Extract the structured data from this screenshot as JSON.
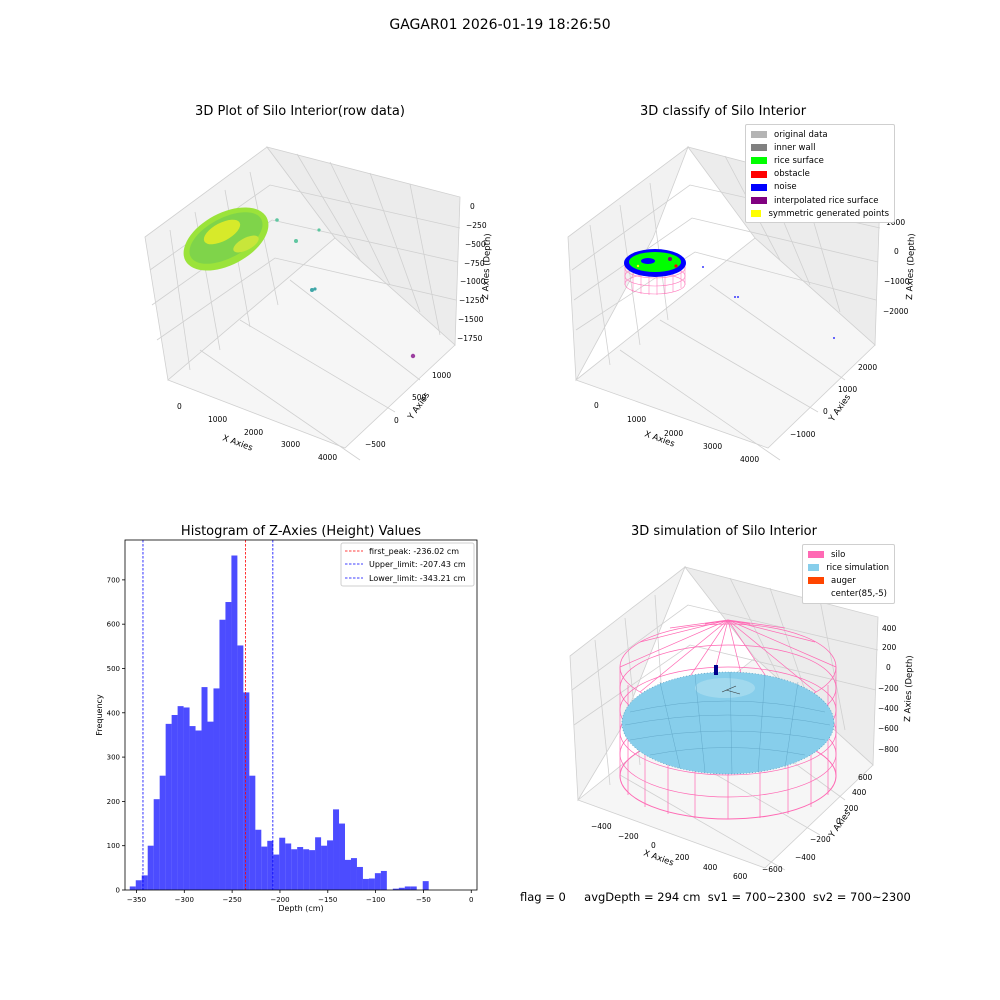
{
  "suptitle": "GAGAR01 2026-01-19 18:26:50",
  "panels": {
    "raw": {
      "title": "3D Plot of Silo Interior(row data)",
      "xlabel": "X Axies",
      "ylabel": "Y Axies",
      "zlabel": "Z Axies (Depth)",
      "xticks": [
        "0",
        "1000",
        "2000",
        "3000",
        "4000"
      ],
      "yticks": [
        "−500",
        "0",
        "500",
        "1000"
      ],
      "zticks": [
        "0",
        "−250",
        "−500",
        "−750",
        "−1000",
        "−1250",
        "−1500",
        "−1750"
      ]
    },
    "classify": {
      "title": "3D classify of Silo Interior",
      "xlabel": "X Axies",
      "ylabel": "Y Axies",
      "zlabel": "Z Axies (Depth)",
      "xticks": [
        "0",
        "1000",
        "2000",
        "3000",
        "4000"
      ],
      "yticks": [
        "−1000",
        "0",
        "1000",
        "2000"
      ],
      "zticks": [
        "1000",
        "0",
        "−1000",
        "−2000"
      ],
      "legend": [
        {
          "label": "original data",
          "color": "#b4b4b4"
        },
        {
          "label": "inner wall",
          "color": "#808080"
        },
        {
          "label": "rice surface",
          "color": "#00ff00"
        },
        {
          "label": "obstacle",
          "color": "#ff0000"
        },
        {
          "label": "noise",
          "color": "#0000ff"
        },
        {
          "label": "interpolated rice surface",
          "color": "#800080"
        },
        {
          "label": "symmetric generated points",
          "color": "#ffff00"
        }
      ]
    },
    "simulation": {
      "title": "3D simulation of Silo Interior",
      "xlabel": "X Axies",
      "ylabel": "Y Axies",
      "zlabel": "Z Axies (Depth)",
      "xticks": [
        "−400",
        "−200",
        "0",
        "200",
        "400",
        "600"
      ],
      "yticks": [
        "−600",
        "−400",
        "−200",
        "0",
        "200",
        "400",
        "600"
      ],
      "zticks": [
        "400",
        "200",
        "0",
        "−200",
        "−400",
        "−600",
        "−800"
      ],
      "legend": [
        {
          "label": "silo",
          "color": "#ff69b4"
        },
        {
          "label": "rice simulation",
          "color": "#87ceeb"
        },
        {
          "label": "auger",
          "color": "#ff4500"
        },
        {
          "label": "center(85,-5)",
          "color": "#ffffff"
        }
      ]
    }
  },
  "chart_data": {
    "type": "bar",
    "title": "Histogram of Z-Axies (Height) Values",
    "xlabel": "Depth (cm)",
    "ylabel": "Frequency",
    "xlim": [
      -362,
      6
    ],
    "ylim": [
      0,
      790
    ],
    "xticks": [
      -350,
      -300,
      -250,
      -200,
      -150,
      -100,
      -50,
      0
    ],
    "yticks": [
      0,
      100,
      200,
      300,
      400,
      500,
      600,
      700
    ],
    "bin_start": -357,
    "bin_width": 6.25,
    "values": [
      8,
      22,
      33,
      100,
      205,
      258,
      375,
      395,
      415,
      412,
      370,
      360,
      458,
      380,
      455,
      610,
      650,
      755,
      552,
      446,
      258,
      136,
      98,
      111,
      80,
      118,
      105,
      92,
      97,
      92,
      90,
      119,
      100,
      112,
      182,
      150,
      68,
      72,
      52,
      25,
      26,
      38,
      43,
      0,
      3,
      5,
      8,
      8,
      0,
      20
    ],
    "bar_color": "#0000ff",
    "bar_alpha": 0.7,
    "vlines": [
      {
        "label": "first_peak: -236.02 cm",
        "x": -236.02,
        "color": "#ff0000"
      },
      {
        "label": "Upper_limit: -207.43 cm",
        "x": -207.43,
        "color": "#0000ff"
      },
      {
        "label": "Lower_limit: -343.21 cm",
        "x": -343.21,
        "color": "#0000ff"
      }
    ],
    "legend_position": "top-right"
  },
  "footer": {
    "flag": "flag = 0",
    "avg": "avgDepth = 294 cm",
    "sv1": "sv1 = 700~2300",
    "sv2": "sv2 = 700~2300"
  },
  "colors": {
    "silo_wire": "#ff69b4",
    "rice_sim": "#87ceeb"
  }
}
